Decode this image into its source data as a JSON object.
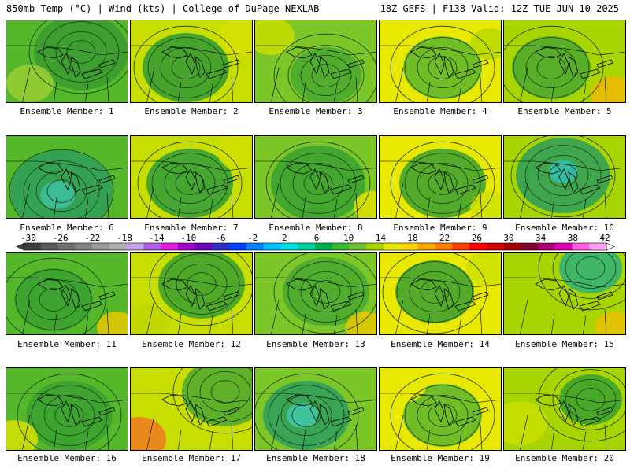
{
  "header": {
    "left": "850mb Temp (°C) | Wind (kts) | College of DuPage NEXLAB",
    "right": "18Z GEFS | F138 Valid: 12Z TUE JUN 10 2025"
  },
  "members": [
    "Ensemble Member: 1",
    "Ensemble Member: 2",
    "Ensemble Member: 3",
    "Ensemble Member: 4",
    "Ensemble Member: 5",
    "Ensemble Member: 6",
    "Ensemble Member: 7",
    "Ensemble Member: 8",
    "Ensemble Member: 9",
    "Ensemble Member: 10",
    "Ensemble Member: 11",
    "Ensemble Member: 12",
    "Ensemble Member: 13",
    "Ensemble Member: 14",
    "Ensemble Member: 15",
    "Ensemble Member: 16",
    "Ensemble Member: 17",
    "Ensemble Member: 18",
    "Ensemble Member: 19",
    "Ensemble Member: 20"
  ],
  "colorbar": {
    "ticks": [
      "-30",
      "-26",
      "-22",
      "-18",
      "-14",
      "-10",
      "-6",
      "-2",
      "2",
      "6",
      "10",
      "14",
      "18",
      "22",
      "26",
      "30",
      "34",
      "38",
      "42"
    ],
    "colors": [
      "#3f3f3f",
      "#5a5a5a",
      "#707070",
      "#858585",
      "#9a9a9a",
      "#b0b0b0",
      "#c8a2e8",
      "#b060e0",
      "#e020e0",
      "#a000c8",
      "#6a00b0",
      "#3030c0",
      "#0040ff",
      "#0080ff",
      "#00c0ff",
      "#00e0e0",
      "#00d0a0",
      "#00b050",
      "#3cb832",
      "#70c030",
      "#a8d400",
      "#e8e800",
      "#ffd400",
      "#ffa800",
      "#ff8000",
      "#ff4000",
      "#ff0000",
      "#d00000",
      "#a00000",
      "#800030",
      "#b00070",
      "#e000b0",
      "#ff60e0",
      "#ffa0f0"
    ]
  }
}
